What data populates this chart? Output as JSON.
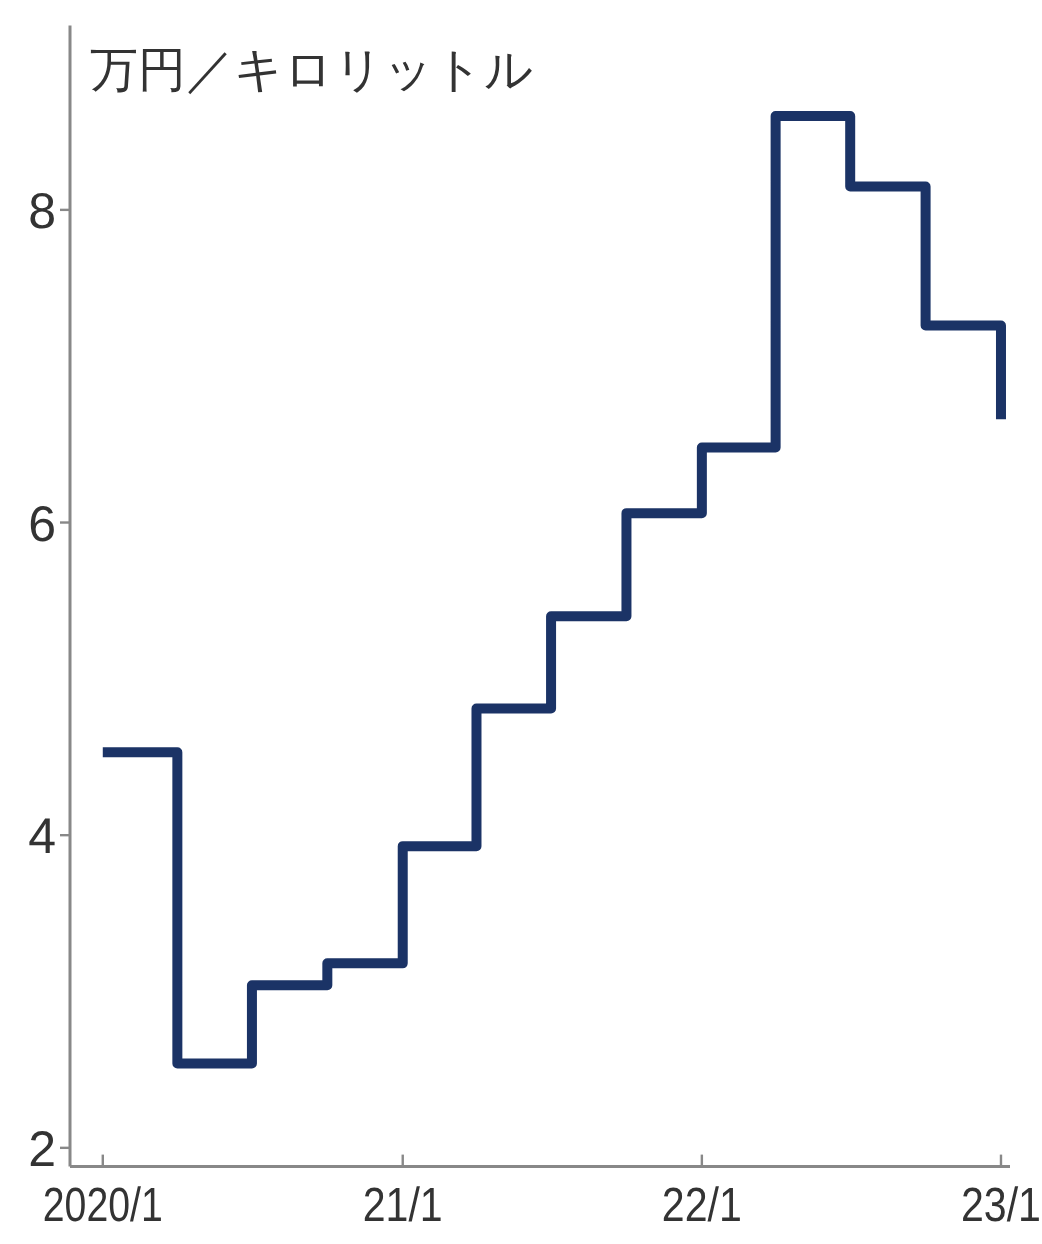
{
  "chart_data": {
    "type": "step",
    "ylabel": "万円／キロリットル",
    "x": [
      "2020-01",
      "2020-04",
      "2020-07",
      "2020-10",
      "2021-01",
      "2021-04",
      "2021-07",
      "2021-10",
      "2022-01",
      "2022-04",
      "2022-07",
      "2022-10",
      "2023-01"
    ],
    "series": [
      {
        "color": "#1b3366",
        "values": [
          4.53,
          2.54,
          3.04,
          3.18,
          3.93,
          4.81,
          5.4,
          6.06,
          6.48,
          8.6,
          8.15,
          7.26,
          6.66
        ]
      }
    ],
    "xlim": [
      "2019-11-22",
      "2023-01-12"
    ],
    "ylim": [
      1.88,
      9.18
    ],
    "xticks": [
      {
        "value": "2020-01",
        "label": "2020/1"
      },
      {
        "value": "2021-01",
        "label": "21/1"
      },
      {
        "value": "2022-01",
        "label": "22/1"
      },
      {
        "value": "2023-01",
        "label": "23/1"
      }
    ],
    "yticks": [
      2,
      4,
      6,
      8
    ],
    "line_style": "solid",
    "marker": "none"
  }
}
